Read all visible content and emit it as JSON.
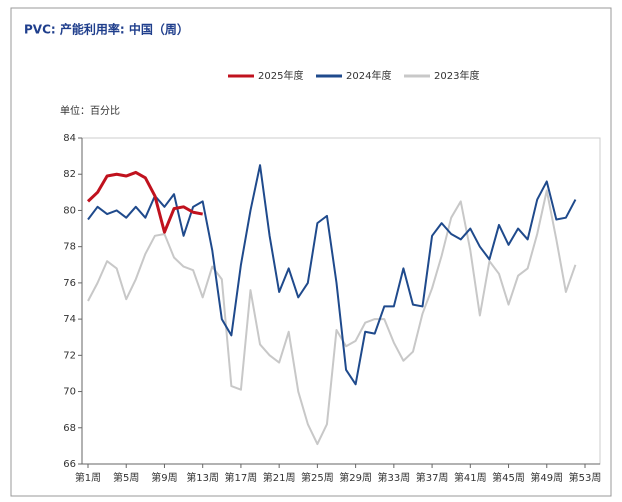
{
  "chart_data": {
    "type": "line",
    "title": "PVC: 产能利用率: 中国（周）",
    "unit_label": "单位：百分比",
    "categories": [
      "第1周",
      null,
      null,
      null,
      "第5周",
      null,
      null,
      null,
      "第9周",
      null,
      null,
      null,
      "第13周",
      null,
      null,
      null,
      "第17周",
      null,
      null,
      null,
      "第21周",
      null,
      null,
      null,
      "第25周",
      null,
      null,
      null,
      "第29周",
      null,
      null,
      null,
      "第33周",
      null,
      null,
      null,
      "第37周",
      null,
      null,
      null,
      "第41周",
      null,
      null,
      null,
      "第45周",
      null,
      null,
      null,
      "第49周",
      null,
      null,
      null,
      "第53周"
    ],
    "series": [
      {
        "name": "2025年度",
        "color": "#c0121e",
        "width": 3,
        "values": [
          80.5,
          81.0,
          81.9,
          82.0,
          81.9,
          82.1,
          81.8,
          80.8,
          78.8,
          80.1,
          80.2,
          79.9,
          79.8,
          null,
          null,
          null,
          null,
          null,
          null,
          null,
          null,
          null,
          null,
          null,
          null,
          null,
          null,
          null,
          null,
          null,
          null,
          null,
          null,
          null,
          null,
          null,
          null,
          null,
          null,
          null,
          null,
          null,
          null,
          null,
          null,
          null,
          null,
          null,
          null,
          null,
          null,
          null,
          null
        ]
      },
      {
        "name": "2024年度",
        "color": "#1f4a8c",
        "width": 2,
        "values": [
          79.5,
          80.2,
          79.8,
          80.0,
          79.6,
          80.2,
          79.6,
          80.8,
          80.2,
          80.9,
          78.6,
          80.2,
          80.5,
          77.8,
          74.0,
          73.1,
          77.0,
          80.0,
          82.5,
          78.6,
          75.5,
          76.8,
          75.2,
          76.0,
          79.3,
          79.7,
          76.0,
          71.2,
          70.4,
          73.3,
          73.2,
          74.7,
          74.7,
          76.8,
          74.8,
          74.7,
          78.6,
          79.3,
          78.7,
          78.4,
          79.0,
          78.0,
          77.3,
          79.2,
          78.1,
          79.0,
          78.4,
          80.6,
          81.6,
          79.5,
          79.6,
          80.6,
          null
        ]
      },
      {
        "name": "2023年度",
        "color": "#c8c8c8",
        "width": 2,
        "values": [
          75.0,
          76.0,
          77.2,
          76.8,
          75.1,
          76.2,
          77.6,
          78.6,
          78.7,
          77.4,
          76.9,
          76.7,
          75.2,
          76.9,
          76.2,
          70.3,
          70.1,
          75.6,
          72.6,
          72.0,
          71.6,
          73.3,
          70.0,
          68.2,
          67.1,
          68.2,
          73.4,
          72.5,
          72.8,
          73.8,
          74.0,
          74.0,
          72.7,
          71.7,
          72.2,
          74.3,
          75.7,
          77.5,
          79.6,
          80.5,
          77.8,
          74.2,
          77.2,
          76.5,
          74.8,
          76.4,
          76.8,
          78.7,
          81.1,
          78.4,
          75.5,
          77.0,
          null
        ]
      }
    ],
    "ylim": [
      66,
      84
    ],
    "yticks": [
      66,
      68,
      70,
      72,
      74,
      76,
      78,
      80,
      82,
      84
    ]
  }
}
